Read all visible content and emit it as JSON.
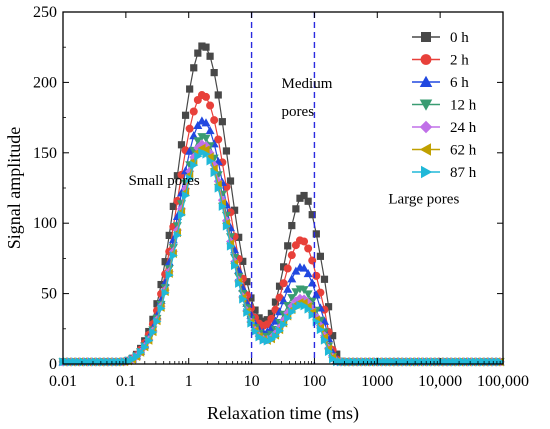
{
  "chart_data": {
    "type": "line",
    "xlabel": "Relaxation time (ms)",
    "ylabel": "Signal amplitude",
    "x_scale": "log",
    "xlim": [
      0.01,
      100000
    ],
    "ylim": [
      0,
      250
    ],
    "x_ticks": [
      0.01,
      0.1,
      1,
      10,
      100,
      1000,
      10000,
      100000
    ],
    "x_tick_labels": [
      "0.01",
      "0.1",
      "1",
      "10",
      "100",
      "1000",
      "10,000",
      "100,000"
    ],
    "y_ticks": [
      0,
      50,
      100,
      150,
      200,
      250
    ],
    "y_tick_labels": [
      "0",
      "50",
      "100",
      "150",
      "200",
      "250"
    ],
    "grid": false,
    "legend_position": "top-right",
    "dividers": [
      10,
      100
    ],
    "annotations": [
      {
        "text": "Small pores",
        "x": 0.11,
        "y": 127
      },
      {
        "text": "Medium",
        "x": 30,
        "y": 196
      },
      {
        "text": "pores",
        "x": 30,
        "y": 176
      },
      {
        "text": "Large pores",
        "x": 1500,
        "y": 114
      }
    ],
    "series": [
      {
        "name": "0 h",
        "color": "#484848",
        "marker": "square",
        "peak1": {
          "logx": 0.23,
          "h": 223,
          "w": 0.4
        },
        "peak2": {
          "logx": 1.83,
          "h": 114,
          "w": 0.28
        },
        "bridge": {
          "logx": 1.2,
          "h": 8,
          "w": 0.55
        },
        "tail_end": 2.45
      },
      {
        "name": "2 h",
        "color": "#e8403a",
        "marker": "circle",
        "peak1": {
          "logx": 0.22,
          "h": 188,
          "w": 0.4
        },
        "peak2": {
          "logx": 1.8,
          "h": 82,
          "w": 0.28
        },
        "bridge": {
          "logx": 1.2,
          "h": 8,
          "w": 0.55
        },
        "tail_end": 2.42
      },
      {
        "name": "6 h",
        "color": "#2148e0",
        "marker": "triangle-up",
        "peak1": {
          "logx": 0.22,
          "h": 170,
          "w": 0.4
        },
        "peak2": {
          "logx": 1.8,
          "h": 64,
          "w": 0.28
        },
        "bridge": {
          "logx": 1.2,
          "h": 6,
          "w": 0.55
        },
        "tail_end": 2.42
      },
      {
        "name": "12 h",
        "color": "#3a9c72",
        "marker": "triangle-down",
        "peak1": {
          "logx": 0.22,
          "h": 159,
          "w": 0.4
        },
        "peak2": {
          "logx": 1.8,
          "h": 49,
          "w": 0.28
        },
        "bridge": {
          "logx": 1.2,
          "h": 5,
          "w": 0.55
        },
        "tail_end": 2.4
      },
      {
        "name": "24 h",
        "color": "#c070e8",
        "marker": "diamond",
        "peak1": {
          "logx": 0.22,
          "h": 154,
          "w": 0.4
        },
        "peak2": {
          "logx": 1.8,
          "h": 43,
          "w": 0.28
        },
        "bridge": {
          "logx": 1.2,
          "h": 4,
          "w": 0.55
        },
        "tail_end": 2.4
      },
      {
        "name": "62 h",
        "color": "#c0a000",
        "marker": "triangle-left",
        "peak1": {
          "logx": 0.22,
          "h": 151,
          "w": 0.4
        },
        "peak2": {
          "logx": 1.8,
          "h": 40,
          "w": 0.28
        },
        "bridge": {
          "logx": 1.2,
          "h": 4,
          "w": 0.55
        },
        "tail_end": 2.4
      },
      {
        "name": "87 h",
        "color": "#20b8d8",
        "marker": "triangle-right",
        "peak1": {
          "logx": 0.22,
          "h": 148,
          "w": 0.4
        },
        "peak2": {
          "logx": 1.8,
          "h": 38,
          "w": 0.28
        },
        "bridge": {
          "logx": 1.2,
          "h": 4,
          "w": 0.55
        },
        "tail_end": 2.38
      }
    ]
  }
}
